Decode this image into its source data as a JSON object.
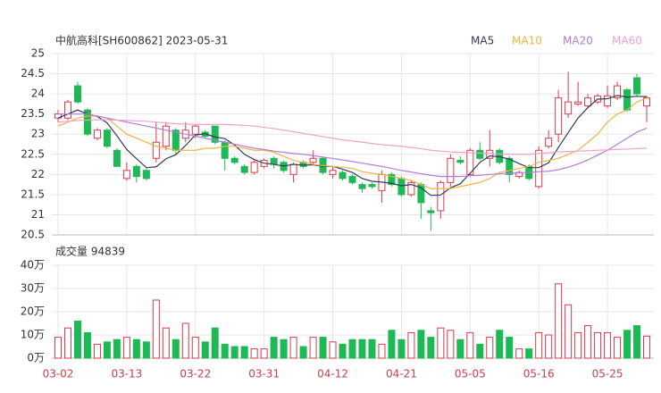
{
  "chart_data": [
    {
      "type": "candlestick",
      "title": "中航高科[SH600862] 2023-05-31",
      "up_color": "#d93a4c",
      "down_color": "#1db954",
      "open": [
        23.4,
        23.4,
        24.2,
        23.6,
        22.9,
        23.1,
        22.6,
        21.9,
        22.2,
        22.1,
        22.4,
        22.7,
        23.1,
        22.9,
        23.0,
        23.05,
        23.2,
        22.8,
        22.4,
        22.2,
        22.05,
        22.2,
        22.4,
        22.3,
        22.0,
        22.3,
        22.3,
        22.4,
        22.0,
        22.05,
        21.95,
        21.75,
        21.75,
        21.6,
        22.0,
        21.9,
        21.5,
        21.75,
        21.1,
        21.1,
        21.8,
        22.35,
        22.0,
        22.6,
        22.4,
        22.6,
        22.4,
        21.95,
        22.2,
        21.7,
        22.7,
        23.0,
        23.5,
        23.75,
        23.7,
        23.8,
        23.7,
        23.9,
        24.1,
        24.4,
        23.7
      ],
      "high": [
        23.6,
        23.85,
        24.3,
        23.65,
        23.15,
        23.15,
        22.65,
        22.3,
        22.25,
        22.15,
        23.3,
        23.3,
        23.15,
        23.3,
        23.25,
        23.1,
        23.2,
        22.85,
        22.45,
        22.25,
        22.35,
        22.4,
        22.45,
        22.35,
        22.3,
        22.35,
        22.6,
        22.45,
        22.2,
        22.1,
        22.0,
        21.8,
        21.8,
        22.1,
        22.05,
        21.95,
        21.85,
        21.8,
        21.2,
        21.85,
        22.5,
        22.45,
        22.65,
        22.8,
        23.1,
        22.65,
        22.45,
        22.1,
        22.25,
        22.7,
        23.1,
        24.1,
        24.55,
        24.3,
        24.0,
        24.0,
        24.2,
        24.3,
        24.15,
        24.5,
        23.95
      ],
      "low": [
        23.3,
        23.35,
        23.75,
        22.95,
        22.85,
        22.65,
        22.2,
        21.85,
        21.8,
        21.85,
        22.3,
        22.6,
        22.5,
        22.8,
        22.9,
        22.9,
        22.75,
        22.1,
        22.25,
        22.0,
        22.0,
        22.15,
        22.15,
        22.05,
        21.8,
        22.15,
        22.25,
        22.0,
        21.9,
        21.85,
        21.75,
        21.55,
        21.65,
        21.3,
        21.7,
        21.45,
        21.45,
        20.9,
        20.6,
        20.9,
        21.7,
        22.25,
        21.95,
        22.35,
        22.2,
        22.25,
        21.8,
        21.9,
        21.85,
        21.65,
        22.65,
        22.8,
        23.4,
        23.7,
        23.65,
        23.75,
        23.65,
        23.85,
        23.55,
        23.95,
        23.3
      ],
      "close": [
        23.5,
        23.8,
        23.8,
        23.0,
        23.1,
        22.7,
        22.2,
        22.1,
        21.95,
        21.9,
        22.8,
        23.2,
        22.6,
        23.1,
        23.2,
        22.95,
        22.8,
        22.4,
        22.3,
        22.05,
        22.3,
        22.35,
        22.25,
        22.1,
        22.25,
        22.2,
        22.4,
        22.05,
        22.1,
        21.9,
        21.8,
        21.65,
        21.7,
        22.0,
        21.75,
        21.5,
        21.8,
        21.3,
        21.05,
        21.8,
        22.4,
        22.3,
        22.6,
        22.4,
        22.6,
        22.3,
        22.0,
        22.05,
        21.9,
        22.6,
        22.9,
        23.9,
        23.8,
        23.8,
        23.9,
        23.95,
        23.95,
        24.2,
        23.6,
        24.0,
        23.9
      ],
      "series": [
        {
          "name": "MA5",
          "color": "#333a5c",
          "values": [
            23.4,
            23.5,
            23.6,
            23.5,
            23.44,
            23.28,
            22.96,
            22.62,
            22.39,
            22.17,
            22.19,
            22.39,
            22.49,
            22.72,
            22.98,
            23.01,
            22.93,
            22.89,
            22.73,
            22.5,
            22.37,
            22.28,
            22.25,
            22.21,
            22.25,
            22.23,
            22.24,
            22.2,
            22.2,
            22.13,
            22.05,
            21.9,
            21.83,
            21.81,
            21.78,
            21.72,
            21.75,
            21.67,
            21.48,
            21.49,
            21.67,
            21.77,
            22.03,
            22.3,
            22.46,
            22.44,
            22.38,
            22.27,
            22.17,
            22.17,
            22.29,
            22.67,
            23.04,
            23.4,
            23.66,
            23.87,
            23.88,
            23.96,
            23.92,
            23.94,
            23.93
          ]
        },
        {
          "name": "MA10",
          "color": "#f2b440",
          "values": [
            23.2,
            23.3,
            23.4,
            23.45,
            23.45,
            23.4,
            23.2,
            23.0,
            22.9,
            22.8,
            22.7,
            22.65,
            22.6,
            22.6,
            22.6,
            22.65,
            22.65,
            22.7,
            22.7,
            22.65,
            22.6,
            22.6,
            22.55,
            22.45,
            22.35,
            22.3,
            22.25,
            22.22,
            22.2,
            22.18,
            22.15,
            22.07,
            22.03,
            22.0,
            21.95,
            21.9,
            21.85,
            21.75,
            21.65,
            21.65,
            21.65,
            21.7,
            21.75,
            21.8,
            21.9,
            22.05,
            22.1,
            22.15,
            22.2,
            22.3,
            22.35,
            22.4,
            22.5,
            22.6,
            22.8,
            23.0,
            23.3,
            23.5,
            23.6,
            23.8,
            23.9
          ]
        },
        {
          "name": "MA20",
          "color": "#b67ad8",
          "values": [
            23.5,
            23.5,
            23.5,
            23.5,
            23.45,
            23.4,
            23.35,
            23.3,
            23.25,
            23.2,
            23.15,
            23.1,
            23.05,
            23.0,
            22.95,
            22.9,
            22.85,
            22.8,
            22.75,
            22.7,
            22.65,
            22.62,
            22.58,
            22.55,
            22.52,
            22.5,
            22.47,
            22.43,
            22.4,
            22.36,
            22.32,
            22.28,
            22.24,
            22.2,
            22.15,
            22.1,
            22.06,
            22.02,
            21.98,
            21.95,
            21.95,
            21.95,
            21.97,
            21.98,
            22.0,
            22.02,
            22.03,
            22.04,
            22.05,
            22.07,
            22.08,
            22.12,
            22.18,
            22.26,
            22.36,
            22.48,
            22.6,
            22.75,
            22.9,
            23.05,
            23.15
          ]
        },
        {
          "name": "MA60",
          "color": "#f0a0cc",
          "values": [
            23.3,
            23.32,
            23.34,
            23.35,
            23.36,
            23.36,
            23.35,
            23.34,
            23.33,
            23.32,
            23.3,
            23.28,
            23.26,
            23.25,
            23.24,
            23.24,
            23.24,
            23.24,
            23.23,
            23.22,
            23.2,
            23.17,
            23.14,
            23.1,
            23.06,
            23.02,
            22.98,
            22.94,
            22.9,
            22.86,
            22.83,
            22.8,
            22.77,
            22.74,
            22.72,
            22.7,
            22.67,
            22.64,
            22.6,
            22.58,
            22.56,
            22.55,
            22.54,
            22.53,
            22.52,
            22.51,
            22.5,
            22.5,
            22.5,
            22.52,
            22.54,
            22.56,
            22.57,
            22.58,
            22.59,
            22.6,
            22.61,
            22.62,
            22.63,
            22.64,
            22.65
          ]
        }
      ],
      "ylim": [
        20.5,
        25
      ],
      "yticks": [
        20.5,
        21,
        21.5,
        22,
        22.5,
        23,
        23.5,
        24,
        24.5,
        25
      ],
      "grid": true
    },
    {
      "type": "bar",
      "title": "成交量 94839",
      "categories": [
        "03-02",
        null,
        null,
        null,
        null,
        null,
        null,
        "03-13",
        null,
        null,
        null,
        null,
        null,
        null,
        "03-22",
        null,
        null,
        null,
        null,
        null,
        null,
        "03-31",
        null,
        null,
        null,
        null,
        null,
        null,
        "04-12",
        null,
        null,
        null,
        null,
        null,
        null,
        "04-21",
        null,
        null,
        null,
        null,
        null,
        null,
        "05-05",
        null,
        null,
        null,
        null,
        null,
        null,
        "05-16",
        null,
        null,
        null,
        null,
        null,
        null,
        "05-25",
        null,
        null,
        null,
        null
      ],
      "values": [
        90000,
        130000,
        160000,
        110000,
        60000,
        70000,
        80000,
        90000,
        80000,
        70000,
        250000,
        130000,
        80000,
        150000,
        90000,
        70000,
        130000,
        60000,
        50000,
        50000,
        40000,
        40000,
        90000,
        80000,
        90000,
        50000,
        90000,
        90000,
        70000,
        60000,
        80000,
        80000,
        80000,
        60000,
        120000,
        80000,
        110000,
        120000,
        90000,
        130000,
        120000,
        80000,
        110000,
        60000,
        90000,
        120000,
        90000,
        40000,
        40000,
        110000,
        100000,
        320000,
        230000,
        110000,
        140000,
        110000,
        110000,
        90000,
        120000,
        140000,
        94839
      ],
      "ylim": [
        0,
        400000
      ],
      "yticks": [
        {
          "value": 0,
          "label": "0万"
        },
        {
          "value": 100000,
          "label": "10万"
        },
        {
          "value": 200000,
          "label": "20万"
        },
        {
          "value": 300000,
          "label": "30万"
        },
        {
          "value": 400000,
          "label": "40万"
        }
      ],
      "grid": true
    }
  ]
}
